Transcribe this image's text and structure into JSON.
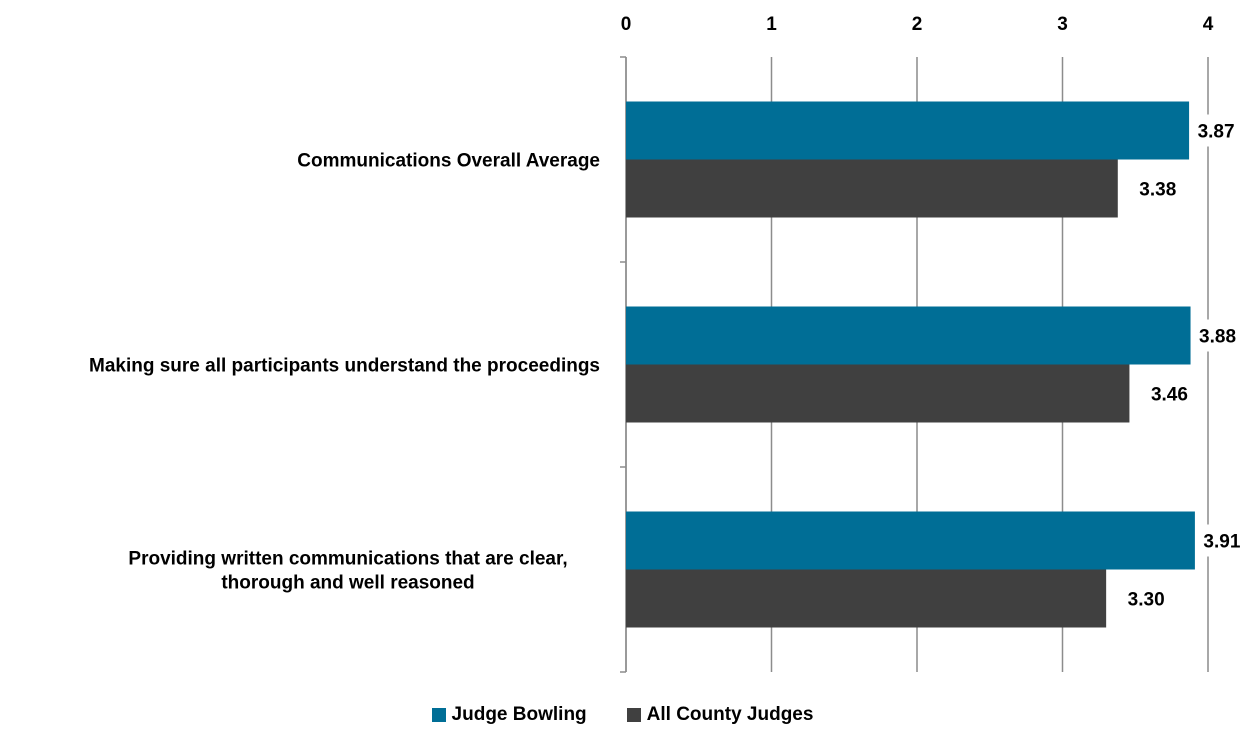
{
  "chart_data": {
    "type": "bar",
    "orientation": "horizontal",
    "categories": [
      [
        "Communications Overall Average"
      ],
      [
        "Making sure all participants understand the proceedings"
      ],
      [
        "Providing written communications that are clear,",
        "thorough and well reasoned"
      ]
    ],
    "series": [
      {
        "name": "Judge Bowling",
        "values": [
          3.87,
          3.88,
          3.91
        ],
        "labels": [
          "3.87",
          "3.88",
          "3.91"
        ],
        "color": "#006e96"
      },
      {
        "name": "All County Judges",
        "values": [
          3.38,
          3.46,
          3.3
        ],
        "labels": [
          "3.38",
          "3.46",
          "3.30"
        ],
        "color": "#404040"
      }
    ],
    "xlim": [
      0,
      4
    ],
    "ticks": [
      "0",
      "1",
      "2",
      "3",
      "4"
    ],
    "axis_position": "top",
    "grid": true,
    "legend_position": "bottom"
  }
}
